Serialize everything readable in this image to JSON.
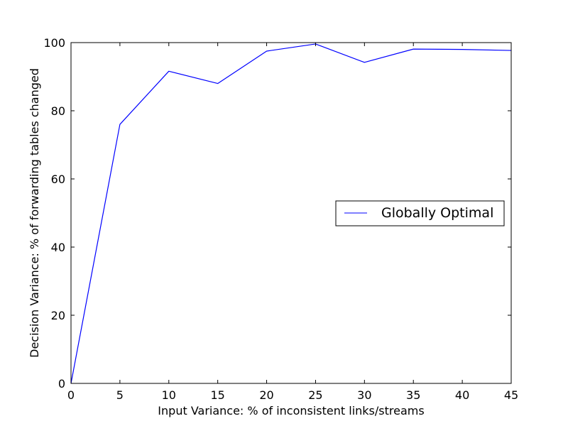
{
  "chart_data": {
    "type": "line",
    "title": "",
    "xlabel": "Input Variance: % of inconsistent links/streams",
    "ylabel": "Decision Variance: % of forwarding tables changed",
    "xlim": [
      0,
      45
    ],
    "ylim": [
      0,
      100
    ],
    "xticks": [
      0,
      5,
      10,
      15,
      20,
      25,
      30,
      35,
      40,
      45
    ],
    "yticks": [
      0,
      20,
      40,
      60,
      80,
      100
    ],
    "grid": false,
    "legend": {
      "position": "center-right"
    },
    "series": [
      {
        "name": "Globally Optimal",
        "color": "#0000ff",
        "x": [
          0,
          5,
          10,
          15,
          20,
          25,
          30,
          35,
          40,
          45
        ],
        "y": [
          0,
          76,
          91.6,
          88,
          97.5,
          99.6,
          94.2,
          98.1,
          98,
          97.7
        ]
      }
    ]
  }
}
